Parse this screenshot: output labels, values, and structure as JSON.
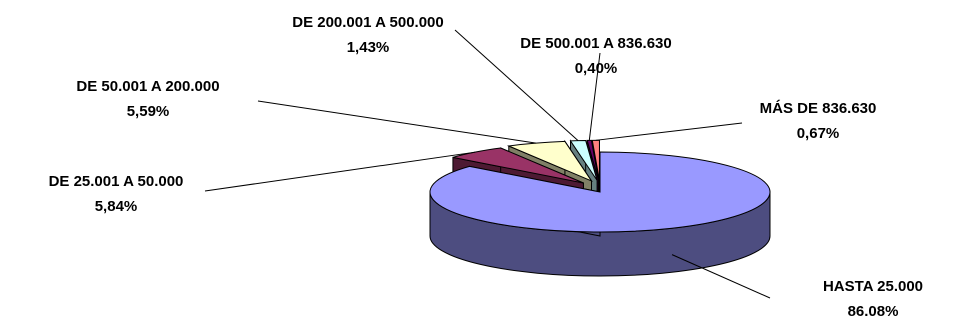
{
  "chart_data": {
    "type": "pie",
    "style": "3d-exploded",
    "title": "",
    "legend": "none",
    "slices": [
      {
        "label": "HASTA 25.000",
        "value_text": "86.08%",
        "value": 86.08,
        "color": "#9999FF",
        "side_color": "#4D4D80"
      },
      {
        "label": "DE 25.001 A 50.000",
        "value_text": "5,84%",
        "value": 5.84,
        "color": "#993366",
        "side_color": "#4D1A33"
      },
      {
        "label": "DE 50.001 A 200.000",
        "value_text": "5,59%",
        "value": 5.59,
        "color": "#FFFFCC",
        "side_color": "#808066"
      },
      {
        "label": "DE 200.001 A 500.000",
        "value_text": "1,43%",
        "value": 1.43,
        "color": "#CCFFFF",
        "side_color": "#668080"
      },
      {
        "label": "DE 500.001 A 836.630",
        "value_text": "0,40%",
        "value": 0.4,
        "color": "#660066",
        "side_color": "#330033"
      },
      {
        "label": "MÁS DE 836.630",
        "value_text": "0,67%",
        "value": 0.67,
        "color": "#FF8080",
        "side_color": "#804040"
      }
    ]
  }
}
